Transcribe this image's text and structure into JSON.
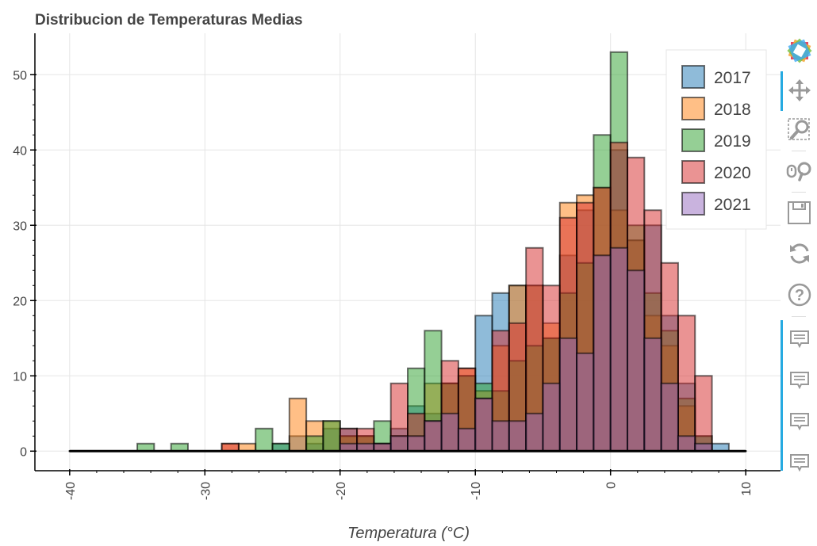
{
  "chart_data": {
    "type": "bar",
    "title": "Distribucion de Temperaturas Medias",
    "xlabel": "Temperatura (°C)",
    "ylabel": "",
    "xlim": [
      -40,
      10
    ],
    "ylim": [
      -2.6,
      55.5
    ],
    "x_ticks": [
      -40,
      -30,
      -20,
      -10,
      0,
      10
    ],
    "y_ticks": [
      0,
      10,
      20,
      30,
      40,
      50
    ],
    "grid": true,
    "legend_position": "top-right",
    "bin_edges": [
      -40,
      -38.75,
      -37.5,
      -36.25,
      -35,
      -33.75,
      -32.5,
      -31.25,
      -30,
      -28.75,
      -27.5,
      -26.25,
      -25,
      -23.75,
      -22.5,
      -21.25,
      -20,
      -18.75,
      -17.5,
      -16.25,
      -15,
      -13.75,
      -12.5,
      -11.25,
      -10,
      -8.75,
      -7.5,
      -6.25,
      -5,
      -3.75,
      -2.5,
      -1.25,
      0,
      1.25,
      2.5,
      3.75,
      5,
      6.25,
      7.5,
      8.75,
      10
    ],
    "series": [
      {
        "name": "2017",
        "color": "#1f77b4",
        "values": [
          0,
          0,
          0,
          0,
          0,
          0,
          0,
          0,
          0,
          0,
          0,
          0,
          1,
          2,
          1,
          3,
          3,
          2,
          1,
          3,
          6,
          5,
          9,
          10,
          18,
          21,
          22,
          22,
          15,
          26,
          32,
          26,
          40,
          28,
          30,
          18,
          9,
          2,
          1,
          0
        ]
      },
      {
        "name": "2018",
        "color": "#ff7f0e",
        "values": [
          0,
          0,
          0,
          0,
          0,
          0,
          0,
          0,
          0,
          1,
          1,
          0,
          0,
          7,
          4,
          4,
          2,
          2,
          1,
          2,
          2,
          9,
          9,
          11,
          8,
          14,
          22,
          22,
          17,
          33,
          34,
          35,
          32,
          28,
          18,
          14,
          6,
          0,
          0,
          0
        ]
      },
      {
        "name": "2019",
        "color": "#2ca02c",
        "values": [
          0,
          0,
          0,
          0,
          1,
          0,
          1,
          0,
          0,
          0,
          0,
          3,
          1,
          0,
          2,
          4,
          2,
          2,
          4,
          2,
          11,
          16,
          9,
          10,
          9,
          8,
          12,
          14,
          15,
          21,
          25,
          42,
          53,
          30,
          21,
          16,
          7,
          2,
          0,
          0
        ]
      },
      {
        "name": "2020",
        "color": "#d62728",
        "values": [
          0,
          0,
          0,
          0,
          0,
          0,
          0,
          0,
          0,
          1,
          0,
          0,
          0,
          0,
          0,
          0,
          3,
          3,
          1,
          9,
          5,
          4,
          12,
          11,
          7,
          16,
          17,
          27,
          22,
          31,
          33,
          35,
          41,
          39,
          32,
          25,
          18,
          10,
          0,
          0
        ]
      },
      {
        "name": "2021",
        "color": "#9467bd",
        "values": [
          0,
          0,
          0,
          0,
          0,
          0,
          0,
          0,
          0,
          0,
          0,
          0,
          0,
          0,
          0,
          0,
          1,
          1,
          1,
          2,
          2,
          4,
          5,
          3,
          7,
          4,
          4,
          5,
          9,
          15,
          13,
          26,
          27,
          24,
          15,
          9,
          2,
          1,
          0,
          0
        ]
      }
    ]
  },
  "toolbar": {
    "tools": [
      {
        "name": "bokeh-logo",
        "icon": "bokeh-logo-icon"
      },
      {
        "name": "pan-tool",
        "icon": "move-arrows-icon"
      },
      {
        "name": "box-zoom-tool",
        "icon": "box-zoom-icon"
      },
      {
        "name": "wheel-zoom-tool",
        "icon": "wheel-zoom-icon"
      },
      {
        "name": "save-tool",
        "icon": "save-icon"
      },
      {
        "name": "reset-tool",
        "icon": "reset-icon"
      },
      {
        "name": "help-tool",
        "icon": "help-icon"
      },
      {
        "name": "hover-tool",
        "icon": "hover-icon"
      }
    ]
  }
}
